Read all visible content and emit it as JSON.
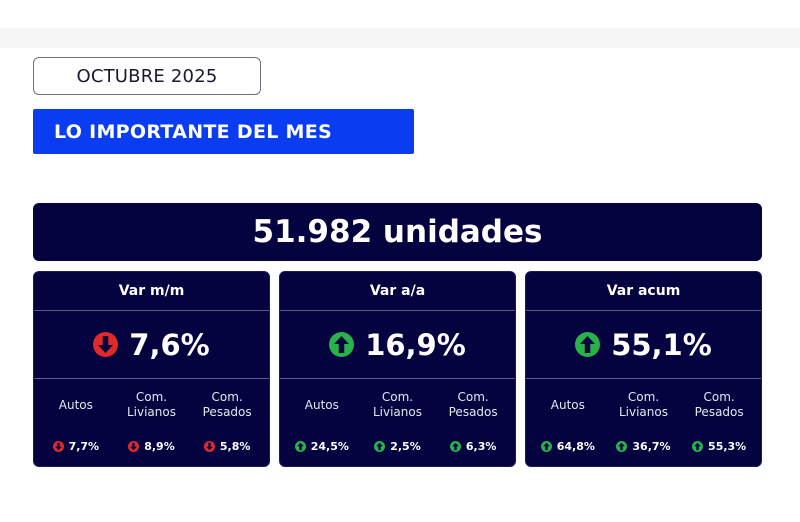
{
  "header": {
    "month": "OCTUBRE 2025",
    "section_title": "LO IMPORTANTE DEL MES"
  },
  "summary": {
    "total_units": "51.982 unidades"
  },
  "colors": {
    "navy": "#04033f",
    "banner_blue": "#0a3cf2",
    "up_green": "#27b34a",
    "down_red": "#e02a2a"
  },
  "cards": [
    {
      "title": "Var m/m",
      "value": "7,6%",
      "trend": "down",
      "trend_icon": "arrow-down-circle-icon",
      "segments": [
        {
          "label_line1": "Autos",
          "label_line2": "",
          "value": "7,7%",
          "trend": "down"
        },
        {
          "label_line1": "Com.",
          "label_line2": "Livianos",
          "value": "8,9%",
          "trend": "down"
        },
        {
          "label_line1": "Com.",
          "label_line2": "Pesados",
          "value": "5,8%",
          "trend": "down"
        }
      ]
    },
    {
      "title": "Var a/a",
      "value": "16,9%",
      "trend": "up",
      "trend_icon": "arrow-up-circle-icon",
      "segments": [
        {
          "label_line1": "Autos",
          "label_line2": "",
          "value": "24,5%",
          "trend": "up"
        },
        {
          "label_line1": "Com.",
          "label_line2": "Livianos",
          "value": "2,5%",
          "trend": "up"
        },
        {
          "label_line1": "Com.",
          "label_line2": "Pesados",
          "value": "6,3%",
          "trend": "up"
        }
      ]
    },
    {
      "title": "Var acum",
      "value": "55,1%",
      "trend": "up",
      "trend_icon": "arrow-up-circle-icon",
      "segments": [
        {
          "label_line1": "Autos",
          "label_line2": "",
          "value": "64,8%",
          "trend": "up"
        },
        {
          "label_line1": "Com.",
          "label_line2": "Livianos",
          "value": "36,7%",
          "trend": "up"
        },
        {
          "label_line1": "Com.",
          "label_line2": "Pesados",
          "value": "55,3%",
          "trend": "up"
        }
      ]
    }
  ]
}
